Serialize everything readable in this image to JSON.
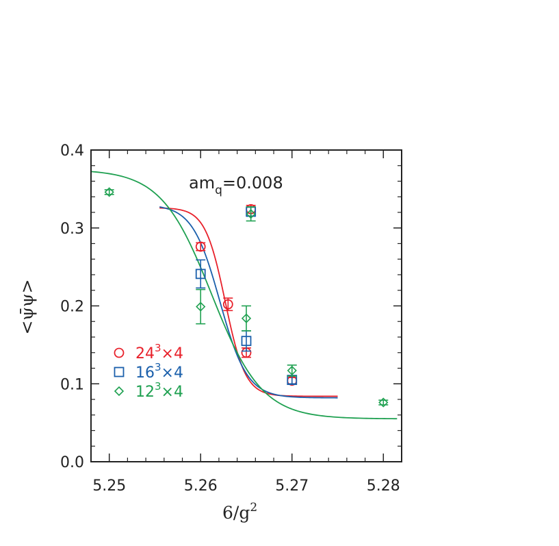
{
  "chart_data": {
    "type": "scatter",
    "xlabel": "6/g",
    "xlabel_sup": "2",
    "ylabel": "<ψ̄ψ>",
    "annotation": {
      "main": "am",
      "sub": "q",
      "value": "=0.008"
    },
    "xlim": [
      5.248,
      5.282
    ],
    "ylim": [
      0.0,
      0.4
    ],
    "xticks": [
      5.25,
      5.26,
      5.27,
      5.28
    ],
    "xtick_labels": [
      "5.25",
      "5.26",
      "5.27",
      "5.28"
    ],
    "yticks": [
      0.0,
      0.1,
      0.2,
      0.3,
      0.4
    ],
    "ytick_labels": [
      "0.0",
      "0.1",
      "0.2",
      "0.3",
      "0.4"
    ],
    "legend_position": "lower-left",
    "series": [
      {
        "name": "24³×4",
        "label_base": "24",
        "label_sup": "3",
        "label_rest": "×4",
        "marker": "circle",
        "color": "#e8202a",
        "points": [
          {
            "x": 5.2655,
            "y": 0.324,
            "err": 0.005
          },
          {
            "x": 5.26,
            "y": 0.276,
            "err": 0.005
          },
          {
            "x": 5.263,
            "y": 0.202,
            "err": 0.008
          },
          {
            "x": 5.265,
            "y": 0.14,
            "err": 0.006
          },
          {
            "x": 5.27,
            "y": 0.104,
            "err": 0.004
          }
        ],
        "fit": {
          "x_start": 5.2555,
          "x_end": 5.275,
          "y_low": 0.084,
          "y_high": 0.326,
          "x0": 5.2627,
          "w": 0.0022
        }
      },
      {
        "name": "16³×4",
        "label_base": "16",
        "label_sup": "3",
        "label_rest": "×4",
        "marker": "square",
        "color": "#1a5fab",
        "points": [
          {
            "x": 5.2655,
            "y": 0.321,
            "err": 0.006
          },
          {
            "x": 5.26,
            "y": 0.241,
            "err": 0.018
          },
          {
            "x": 5.265,
            "y": 0.155,
            "err": 0.013
          },
          {
            "x": 5.27,
            "y": 0.105,
            "err": 0.005
          }
        ],
        "fit": {
          "x_start": 5.2555,
          "x_end": 5.275,
          "y_low": 0.082,
          "y_high": 0.33,
          "x0": 5.2621,
          "w": 0.003
        }
      },
      {
        "name": "12³×4",
        "label_base": "12",
        "label_sup": "3",
        "label_rest": "×4",
        "marker": "diamond",
        "color": "#1ea050",
        "points": [
          {
            "x": 5.25,
            "y": 0.346,
            "err": 0.003
          },
          {
            "x": 5.2655,
            "y": 0.318,
            "err": 0.009
          },
          {
            "x": 5.26,
            "y": 0.199,
            "err": 0.022
          },
          {
            "x": 5.265,
            "y": 0.184,
            "err": 0.016
          },
          {
            "x": 5.27,
            "y": 0.117,
            "err": 0.007
          },
          {
            "x": 5.28,
            "y": 0.076,
            "err": 0.003
          }
        ],
        "fit": {
          "x_start": 5.248,
          "x_end": 5.2815,
          "y_low": 0.055,
          "y_high": 0.375,
          "x0": 5.2612,
          "w": 0.0055
        }
      }
    ]
  }
}
